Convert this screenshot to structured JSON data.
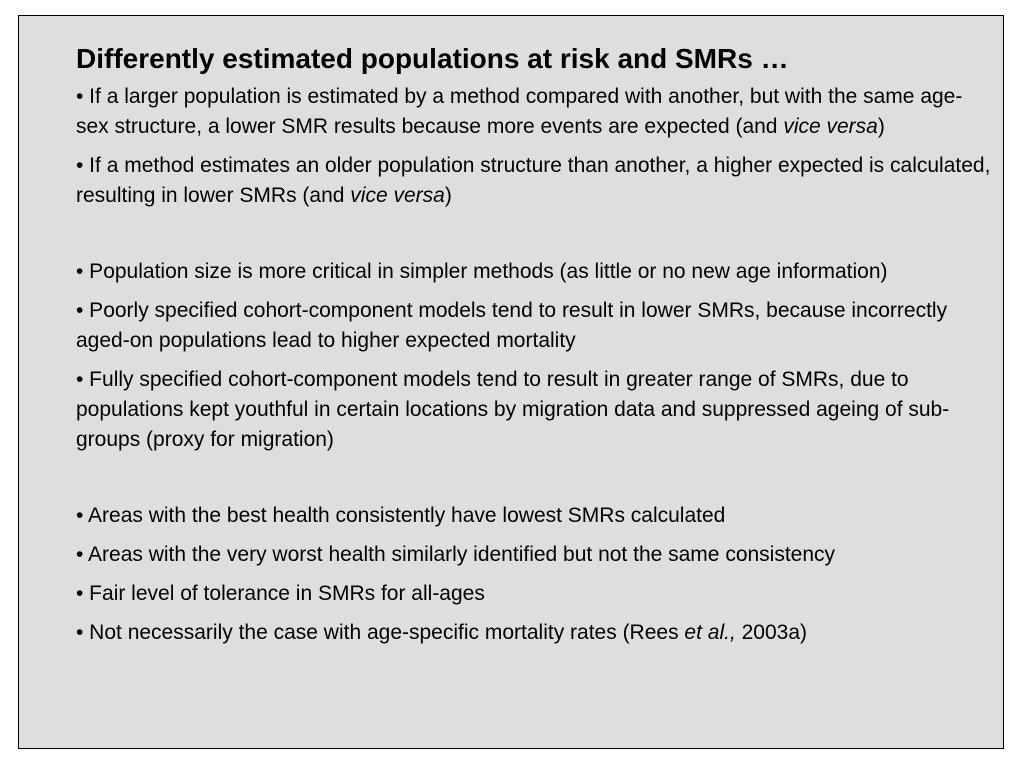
{
  "slide": {
    "title": "Differently estimated populations at risk and SMRs …",
    "bullets": [
      {
        "pre": "• If a larger population is estimated by a method compared with another, but with the same age-sex structure, a lower SMR results because more events are expected (and ",
        "em": "vice versa",
        "post": ")"
      },
      {
        "pre": "• If a method estimates an older population structure than another, a higher expected is calculated, resulting in lower SMRs (and ",
        "em": "vice versa",
        "post": ")"
      },
      {
        "text": "• Population size is more critical in simpler methods (as little or no new age information)"
      },
      {
        "text": "• Poorly specified cohort-component models tend to result in lower SMRs, because incorrectly aged-on populations lead to higher expected mortality"
      },
      {
        "text": "• Fully specified cohort-component models tend to result in greater range of SMRs, due to populations kept youthful in certain locations by migration data and suppressed ageing of sub-groups (proxy for migration)"
      },
      {
        "text": "• Areas with the best health consistently have lowest SMRs calculated"
      },
      {
        "text": "• Areas with the very worst health similarly identified but not the same consistency"
      },
      {
        "text": "• Fair level of tolerance in SMRs for all-ages"
      },
      {
        "pre": "• Not necessarily the case with age-specific mortality rates (Rees ",
        "em": "et al.,",
        "post": " 2003a)"
      }
    ]
  },
  "colors": {
    "background": "#dedede",
    "border": "#000000",
    "text": "#000000"
  }
}
